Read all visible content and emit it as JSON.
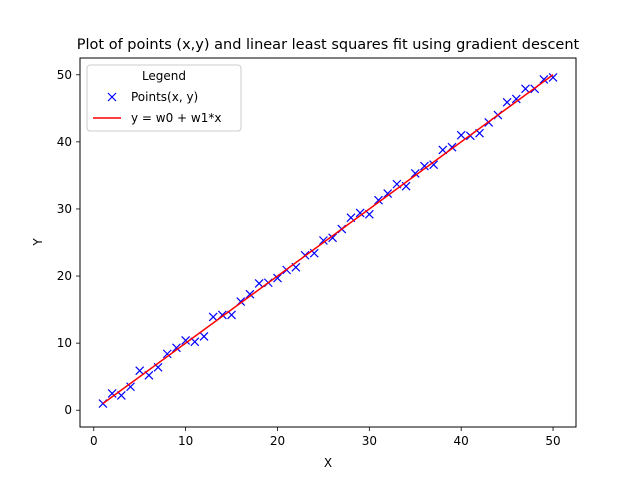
{
  "chart_data": {
    "type": "scatter",
    "title": "Plot of points (x,y) and linear least squares fit using gradient descent",
    "xlabel": "X",
    "ylabel": "Y",
    "xlim": [
      -1.5,
      52.5
    ],
    "ylim": [
      -2.5,
      52.5
    ],
    "xticks": [
      0,
      10,
      20,
      30,
      40,
      50
    ],
    "yticks": [
      0,
      10,
      20,
      30,
      40,
      50
    ],
    "grid": false,
    "legend": {
      "title": "Legend",
      "placement": "top-left",
      "entries": [
        "Points(x, y)",
        "y = w0 + w1*x"
      ]
    },
    "series": [
      {
        "name": "Points(x, y)",
        "kind": "scatter",
        "marker": "x",
        "color": "#0000ff",
        "x": [
          1,
          2,
          3,
          4,
          5,
          6,
          7,
          8,
          9,
          10,
          11,
          12,
          13,
          14,
          15,
          16,
          17,
          18,
          19,
          20,
          21,
          22,
          23,
          24,
          25,
          26,
          27,
          28,
          29,
          30,
          31,
          32,
          33,
          34,
          35,
          36,
          37,
          38,
          39,
          40,
          41,
          42,
          43,
          44,
          45,
          46,
          47,
          48,
          49,
          50
        ],
        "y": [
          1.0,
          2.5,
          2.2,
          3.5,
          5.9,
          5.2,
          6.4,
          8.4,
          9.3,
          10.4,
          10.2,
          11.0,
          13.9,
          14.2,
          14.2,
          16.2,
          17.3,
          18.9,
          19.0,
          19.7,
          20.9,
          21.3,
          23.1,
          23.4,
          25.3,
          25.7,
          27.0,
          28.7,
          29.4,
          29.2,
          31.3,
          32.3,
          33.7,
          33.4,
          35.3,
          36.4,
          36.6,
          38.8,
          39.2,
          41.0,
          40.9,
          41.3,
          42.9,
          44.0,
          45.9,
          46.4,
          47.9,
          47.9,
          49.3,
          49.6
        ]
      },
      {
        "name": "y = w0 + w1*x",
        "kind": "line",
        "color": "#ff0000",
        "x": [
          1,
          50
        ],
        "y": [
          1.0,
          50.0
        ]
      }
    ]
  }
}
